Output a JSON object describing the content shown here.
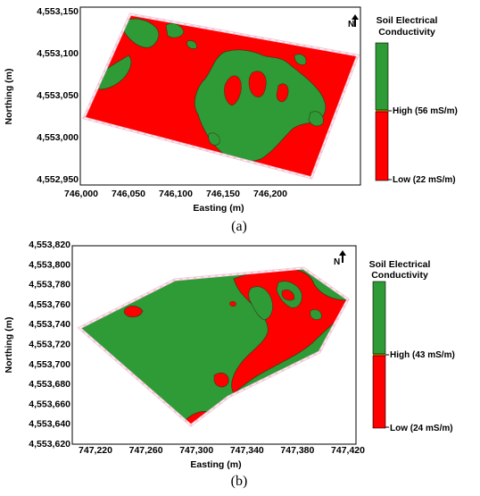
{
  "colors": {
    "high": "#2e9b36",
    "low": "#ff0000",
    "plot_frame": "#000000",
    "field_border": "#f1c6d6",
    "field_border_dash": "#ffffff"
  },
  "panels": [
    {
      "label": "(a)",
      "y_axis_title": "Northing (m)",
      "x_axis_title": "Easting (m)",
      "y_ticks": [
        "4,553,150",
        "4,553,100",
        "4,553,050",
        "4,553,000",
        "4,552,950"
      ],
      "x_ticks": [
        "746,000",
        "746,050",
        "746,100",
        "746,150",
        "746,200"
      ],
      "legend": {
        "title_line1": "Soil Electrical",
        "title_line2": "Conductivity",
        "high_label": "High (56 mS/m)",
        "low_label": "Low (22 mS/m)"
      },
      "north_icon": "north-arrow-icon",
      "north_label": "N"
    },
    {
      "label": "(b)",
      "y_axis_title": "Northing (m)",
      "x_axis_title": "Easting (m)",
      "y_ticks": [
        "4,553,820",
        "4,553,800",
        "4,553,780",
        "4,553,760",
        "4,553,740",
        "4,553,720",
        "4,553,700",
        "4,553,680",
        "4,553,660",
        "4,553,640",
        "4,553,620"
      ],
      "x_ticks": [
        "747,220",
        "747,260",
        "747,300",
        "747,340",
        "747,380",
        "747,420"
      ],
      "legend": {
        "title_line1": "Soil Electrical",
        "title_line2": "Conductivity",
        "high_label": "High (43 mS/m)",
        "low_label": "Low (24 mS/m)"
      },
      "north_icon": "north-arrow-icon",
      "north_label": "N"
    }
  ]
}
